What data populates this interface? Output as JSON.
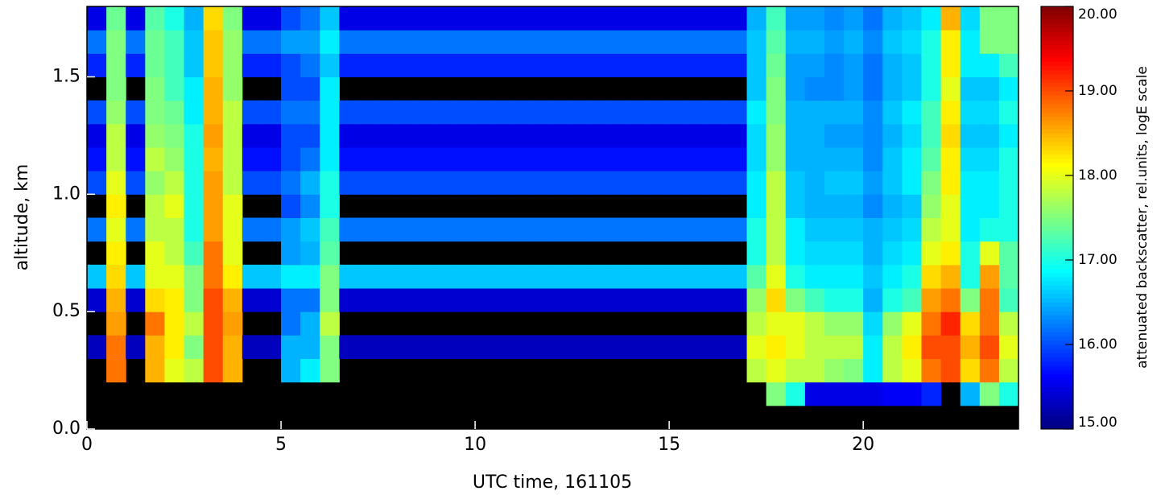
{
  "chart_data": {
    "type": "heatmap",
    "xlabel": "UTC time, 161105",
    "ylabel": "altitude, km",
    "colorbar_label": "attenuated backscatter, rel.units, logE scale",
    "xlim": [
      0,
      24
    ],
    "ylim": [
      0,
      1.8
    ],
    "xticks": [
      0,
      5,
      10,
      15,
      20
    ],
    "yticks": [
      {
        "value": 0,
        "label": "0.0"
      },
      0.5,
      {
        "value": 1,
        "label": "1.0"
      },
      1.5
    ],
    "zlim": [
      15,
      20
    ],
    "zticks": [
      {
        "value": 15,
        "label": "15.00"
      },
      {
        "value": 16,
        "label": "16.00"
      },
      {
        "value": 17,
        "label": "17.00"
      },
      {
        "value": 18,
        "label": "18.00"
      },
      {
        "value": 19,
        "label": "19.00"
      },
      {
        "value": 20,
        "label": "20.00"
      }
    ],
    "colormap": "jet",
    "xbins": [
      0,
      0.5,
      1,
      1.5,
      2,
      2.5,
      3,
      3.5,
      4,
      4.5,
      5,
      5.5,
      6,
      6.5,
      7,
      7.5,
      8,
      8.5,
      9,
      9.5,
      10,
      10.5,
      11,
      11.5,
      12,
      12.5,
      13,
      13.5,
      14,
      14.5,
      15,
      15.5,
      16,
      16.5,
      17,
      17.5,
      18,
      18.5,
      19,
      19.5,
      20,
      20.5,
      21,
      21.5,
      22,
      22.5,
      23,
      23.5,
      24
    ],
    "ybins": [
      0,
      0.1,
      0.2,
      0.3,
      0.4,
      0.5,
      0.6,
      0.7,
      0.8,
      0.9,
      1,
      1.1,
      1.2,
      1.3,
      1.4,
      1.5,
      1.6,
      1.7,
      1.8
    ],
    "z": [
      [
        null,
        null,
        null,
        null,
        null,
        null,
        null,
        null,
        null,
        null,
        null,
        null,
        null,
        null,
        null,
        null,
        null,
        null,
        null,
        null,
        null,
        null,
        null,
        null,
        null,
        null,
        null,
        null,
        null,
        null,
        null,
        null,
        null,
        null,
        null,
        null,
        null,
        null,
        null,
        null,
        null,
        null,
        null,
        null,
        null,
        null,
        null,
        null
      ],
      [
        null,
        null,
        null,
        null,
        null,
        null,
        null,
        null,
        null,
        null,
        null,
        null,
        null,
        null,
        null,
        null,
        null,
        null,
        null,
        null,
        null,
        null,
        null,
        null,
        null,
        null,
        null,
        null,
        null,
        null,
        null,
        null,
        null,
        null,
        null,
        17.5,
        17,
        15.5,
        15.5,
        15.5,
        15.5,
        15.6,
        15.6,
        15.8,
        null,
        16.5,
        17.5,
        17
      ],
      [
        null,
        18.8,
        null,
        18.5,
        18,
        17.8,
        19,
        18.5,
        null,
        null,
        16.5,
        16.8,
        17.5,
        null,
        null,
        null,
        null,
        null,
        null,
        null,
        null,
        null,
        null,
        null,
        null,
        null,
        null,
        null,
        null,
        null,
        null,
        null,
        null,
        null,
        17.8,
        18,
        17.8,
        17.8,
        17.6,
        17.5,
        16.8,
        17.8,
        18,
        18.8,
        19,
        18.3,
        18.8,
        17.8
      ],
      [
        15.3,
        18.8,
        15.3,
        18.5,
        18.2,
        17.5,
        19,
        18.5,
        15.3,
        15.3,
        16.5,
        16.5,
        17.5,
        15.3,
        15.3,
        15.3,
        15.3,
        15.3,
        15.3,
        15.3,
        15.3,
        15.3,
        15.3,
        15.3,
        15.3,
        15.3,
        15.3,
        15.3,
        15.3,
        15.3,
        15.3,
        15.3,
        15.3,
        15.3,
        18,
        18.2,
        18,
        17.8,
        17.8,
        17.8,
        16.8,
        17.8,
        18.2,
        19,
        19,
        18.5,
        19,
        18
      ],
      [
        null,
        18.6,
        null,
        18.8,
        18.2,
        17.8,
        19,
        18.6,
        null,
        null,
        16.2,
        16.5,
        17.8,
        null,
        null,
        null,
        null,
        null,
        null,
        null,
        null,
        null,
        null,
        null,
        null,
        null,
        null,
        null,
        null,
        null,
        null,
        null,
        null,
        null,
        17.8,
        18,
        18,
        17.8,
        17.6,
        17.6,
        16.7,
        17.6,
        18,
        18.8,
        19.2,
        18.3,
        18.8,
        17.8
      ],
      [
        15.4,
        18.5,
        15.4,
        18.3,
        18.2,
        17.5,
        19,
        18.5,
        15.4,
        15.4,
        16.2,
        16.2,
        17.5,
        15.4,
        15.4,
        15.4,
        15.4,
        15.4,
        15.4,
        15.4,
        15.4,
        15.4,
        15.4,
        15.4,
        15.4,
        15.4,
        15.4,
        15.4,
        15.4,
        15.4,
        15.4,
        15.4,
        15.4,
        15.4,
        17.6,
        18.3,
        17.5,
        17.2,
        17,
        17,
        16.5,
        17,
        17.2,
        18.6,
        18.8,
        17.5,
        18.8,
        17.2
      ],
      [
        16.6,
        18.3,
        16.6,
        18,
        18,
        17.5,
        18.8,
        18.2,
        16.6,
        16.6,
        16.8,
        16.8,
        17.5,
        16.6,
        16.6,
        16.6,
        16.6,
        16.6,
        16.6,
        16.6,
        16.6,
        16.6,
        16.6,
        16.6,
        16.6,
        16.6,
        16.6,
        16.6,
        16.6,
        16.6,
        16.6,
        16.6,
        16.6,
        16.6,
        17.3,
        18,
        17,
        16.8,
        16.8,
        16.8,
        16.6,
        16.8,
        17,
        18.3,
        18.5,
        17,
        18.6,
        17.3
      ],
      [
        null,
        18.2,
        null,
        18,
        17.8,
        17.2,
        18.8,
        18,
        null,
        null,
        16.4,
        16.5,
        17.3,
        null,
        null,
        null,
        null,
        null,
        null,
        null,
        null,
        null,
        null,
        null,
        null,
        null,
        null,
        null,
        null,
        null,
        null,
        null,
        null,
        null,
        17,
        17.8,
        16.8,
        16.7,
        16.7,
        16.7,
        16.5,
        16.7,
        16.8,
        18,
        18.2,
        17,
        18,
        17.3
      ],
      [
        16.2,
        18,
        16.2,
        17.8,
        17.8,
        17,
        18.6,
        18,
        16.2,
        16.2,
        16.4,
        16.6,
        17.2,
        16.2,
        16.2,
        16.2,
        16.2,
        16.2,
        16.2,
        16.2,
        16.2,
        16.2,
        16.2,
        16.2,
        16.2,
        16.2,
        16.2,
        16.2,
        16.2,
        16.2,
        16.2,
        16.2,
        16.2,
        16.2,
        17,
        17.8,
        16.8,
        16.6,
        16.6,
        16.6,
        16.5,
        16.6,
        16.7,
        17.8,
        18,
        16.8,
        17,
        17
      ],
      [
        null,
        18.2,
        null,
        17.8,
        18,
        17,
        18.6,
        18,
        null,
        null,
        16,
        16.3,
        17,
        null,
        null,
        null,
        null,
        null,
        null,
        null,
        null,
        null,
        null,
        null,
        null,
        null,
        null,
        null,
        null,
        null,
        null,
        null,
        null,
        null,
        16.8,
        17.8,
        16.6,
        16.5,
        16.5,
        16.5,
        16.3,
        16.5,
        16.6,
        17.6,
        18,
        16.8,
        16.8,
        17
      ],
      [
        16,
        18,
        16,
        17.6,
        17.8,
        17,
        18.6,
        17.8,
        16,
        16,
        16.2,
        16.5,
        17,
        16,
        16,
        16,
        16,
        16,
        16,
        16,
        16,
        16,
        16,
        16,
        16,
        16,
        16,
        16,
        16,
        16,
        16,
        16,
        16,
        16,
        16.8,
        17.8,
        16.6,
        16.5,
        16.6,
        16.6,
        16.4,
        16.6,
        16.8,
        17.5,
        18.2,
        16.8,
        16.8,
        17
      ],
      [
        15.7,
        17.8,
        15.7,
        17.8,
        17.6,
        17,
        18.5,
        17.8,
        15.7,
        15.7,
        16,
        16.2,
        16.8,
        15.7,
        15.7,
        15.7,
        15.7,
        15.7,
        15.7,
        15.7,
        15.7,
        15.7,
        15.7,
        15.7,
        15.7,
        15.7,
        15.7,
        15.7,
        15.7,
        15.7,
        15.7,
        15.7,
        15.7,
        15.7,
        16.7,
        17.6,
        16.5,
        16.5,
        16.5,
        16.5,
        16.3,
        16.6,
        16.8,
        17.3,
        18.2,
        16.7,
        16.7,
        17
      ],
      [
        15.5,
        17.8,
        15.5,
        17.6,
        17.5,
        17,
        18.6,
        17.8,
        15.5,
        15.5,
        16,
        16,
        16.8,
        15.5,
        15.5,
        15.5,
        15.5,
        15.5,
        15.5,
        15.5,
        15.5,
        15.5,
        15.5,
        15.5,
        15.5,
        15.5,
        15.5,
        15.5,
        15.5,
        15.5,
        15.5,
        15.5,
        15.5,
        15.5,
        16.7,
        17.6,
        16.5,
        16.5,
        16.4,
        16.4,
        16.3,
        16.5,
        16.7,
        17.2,
        18.3,
        16.6,
        16.6,
        16.8
      ],
      [
        16,
        17.6,
        16,
        17.5,
        17.4,
        16.8,
        18.5,
        17.8,
        16,
        16,
        16.2,
        16.2,
        16.8,
        16,
        16,
        16,
        16,
        16,
        16,
        16,
        16,
        16,
        16,
        16,
        16,
        16,
        16,
        16,
        16,
        16,
        16,
        16,
        16,
        16,
        16.8,
        17.5,
        16.5,
        16.5,
        16.5,
        16.5,
        16.3,
        16.6,
        16.8,
        17.2,
        18.2,
        16.7,
        16.7,
        17
      ],
      [
        null,
        17.5,
        null,
        17.5,
        17.2,
        16.8,
        18.5,
        17.6,
        null,
        null,
        16,
        16,
        16.8,
        null,
        null,
        null,
        null,
        null,
        null,
        null,
        null,
        null,
        null,
        null,
        null,
        null,
        null,
        null,
        null,
        null,
        null,
        null,
        null,
        null,
        16.6,
        17.5,
        16.4,
        16.3,
        16.3,
        16.4,
        16.2,
        16.5,
        16.6,
        17,
        18,
        16.6,
        16.6,
        16.8
      ],
      [
        15.8,
        17.5,
        15.8,
        17.4,
        17.2,
        16.6,
        18.4,
        17.6,
        15.8,
        15.8,
        16,
        16.2,
        16.6,
        15.8,
        15.8,
        15.8,
        15.8,
        15.8,
        15.8,
        15.8,
        15.8,
        15.8,
        15.8,
        15.8,
        15.8,
        15.8,
        15.8,
        15.8,
        15.8,
        15.8,
        15.8,
        15.8,
        15.8,
        15.8,
        16.6,
        17.4,
        16.4,
        16.4,
        16.3,
        16.4,
        16.2,
        16.5,
        16.6,
        17,
        18.2,
        16.8,
        16.8,
        17.2
      ],
      [
        16.2,
        17.5,
        16.2,
        17.4,
        17.2,
        16.6,
        18.4,
        17.6,
        16.2,
        16.2,
        16.4,
        16.4,
        16.8,
        16.2,
        16.2,
        16.2,
        16.2,
        16.2,
        16.2,
        16.2,
        16.2,
        16.2,
        16.2,
        16.2,
        16.2,
        16.2,
        16.2,
        16.2,
        16.2,
        16.2,
        16.2,
        16.2,
        16.2,
        16.2,
        16.6,
        17.3,
        16.5,
        16.5,
        16.4,
        16.5,
        16.3,
        16.6,
        16.7,
        17,
        18.2,
        16.8,
        17.5,
        17.5
      ],
      [
        15.5,
        17.4,
        15.5,
        17.3,
        17,
        16.5,
        18.3,
        17.5,
        15.5,
        15.5,
        16,
        16.2,
        16.6,
        15.5,
        15.5,
        15.5,
        15.5,
        15.5,
        15.5,
        15.5,
        15.5,
        15.5,
        15.5,
        15.5,
        15.5,
        15.5,
        15.5,
        15.5,
        15.5,
        15.5,
        15.5,
        15.5,
        15.5,
        15.5,
        16.5,
        17.2,
        16.4,
        16.4,
        16.3,
        16.4,
        16.2,
        16.5,
        16.6,
        16.8,
        18.5,
        16.7,
        17.5,
        17.5
      ]
    ]
  }
}
